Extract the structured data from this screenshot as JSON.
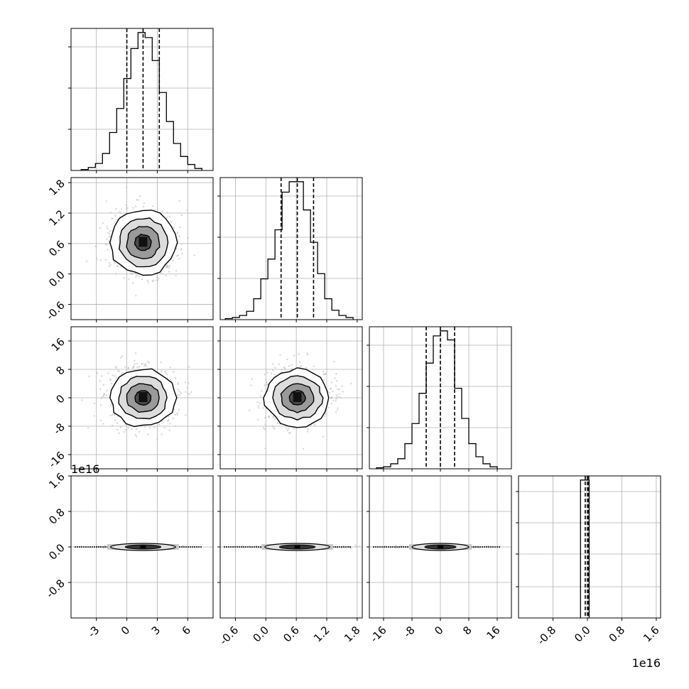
{
  "chart_data": [
    {
      "type": "histogram",
      "panel": "1,1",
      "xlim": [
        -5.5,
        8.5
      ],
      "bin_edges": [
        -4.5,
        -3.8,
        -3.1,
        -2.4,
        -1.7,
        -1.0,
        -0.3,
        0.4,
        1.1,
        1.8,
        2.5,
        3.2,
        3.9,
        4.6,
        5.3,
        6.0,
        6.7,
        7.4
      ],
      "counts": [
        1,
        3,
        7,
        17,
        38,
        62,
        92,
        122,
        138,
        133,
        110,
        78,
        49,
        27,
        14,
        6,
        2
      ],
      "quantiles": [
        0.0,
        1.6,
        3.2
      ],
      "grid": true
    },
    {
      "type": "histogram",
      "panel": "2,2",
      "xlim": [
        -0.9,
        1.9
      ],
      "bin_edges": [
        -0.8,
        -0.66,
        -0.52,
        -0.38,
        -0.24,
        -0.1,
        0.04,
        0.18,
        0.32,
        0.46,
        0.6,
        0.74,
        0.88,
        1.02,
        1.16,
        1.3,
        1.44,
        1.58,
        1.72
      ],
      "counts": [
        1,
        2,
        4,
        8,
        20,
        39,
        58,
        86,
        122,
        132,
        132,
        105,
        74,
        44,
        20,
        9,
        4,
        2
      ],
      "quantiles": [
        0.3,
        0.62,
        0.94
      ],
      "grid": true
    },
    {
      "type": "histogram",
      "panel": "3,3",
      "xlim": [
        -20,
        20
      ],
      "bin_edges": [
        -18,
        -16,
        -14,
        -12,
        -10,
        -8,
        -6,
        -4,
        -2,
        0,
        2,
        4,
        6,
        8,
        10,
        12,
        14,
        16
      ],
      "counts": [
        1,
        2,
        5,
        10,
        25,
        45,
        75,
        105,
        132,
        137,
        128,
        80,
        50,
        25,
        12,
        5,
        2
      ],
      "quantiles": [
        -4,
        0,
        4
      ],
      "grid": true
    },
    {
      "type": "histogram",
      "panel": "4,4",
      "xlim": [
        -1.6e+16,
        1.7e+16
      ],
      "bin_edges": [
        -1600000000000000.0,
        -400000000000000.0,
        400000000000000.0
      ],
      "counts": [
        128,
        128
      ],
      "quantiles": [
        -500000000000000.0,
        0,
        300000000000000.0
      ],
      "offset_label": "1e16",
      "grid": true
    },
    {
      "type": "2d-density",
      "panel": "2,1",
      "xlim": [
        -5.5,
        8.5
      ],
      "ylim": [
        -0.9,
        1.9
      ],
      "center": [
        1.6,
        0.62
      ],
      "spread": [
        1.6,
        0.32
      ],
      "contour_levels": [
        "0.5σ",
        "1σ",
        "1.5σ",
        "2σ"
      ],
      "grid": true
    },
    {
      "type": "2d-density",
      "panel": "3,1",
      "xlim": [
        -5.5,
        8.5
      ],
      "ylim": [
        -20,
        20
      ],
      "center": [
        1.6,
        0
      ],
      "spread": [
        1.6,
        4
      ],
      "contour_levels": [
        "0.5σ",
        "1σ",
        "1.5σ",
        "2σ"
      ],
      "grid": true
    },
    {
      "type": "2d-density",
      "panel": "3,2",
      "xlim": [
        -0.9,
        1.9
      ],
      "ylim": [
        -20,
        20
      ],
      "center": [
        0.62,
        0
      ],
      "spread": [
        0.32,
        4
      ],
      "contour_levels": [
        "0.5σ",
        "1σ",
        "1.5σ",
        "2σ"
      ],
      "grid": true
    },
    {
      "type": "2d-density",
      "panel": "4,1",
      "xlim": [
        -5.5,
        8.5
      ],
      "ylim": [
        -1.6e+16,
        1.6e+16
      ],
      "center": [
        1.6,
        0
      ],
      "spread": [
        1.6,
        300000000000000.0
      ],
      "offset_label": "1e16",
      "grid": true
    },
    {
      "type": "2d-density",
      "panel": "4,2",
      "xlim": [
        -0.9,
        1.9
      ],
      "ylim": [
        -1.6e+16,
        1.6e+16
      ],
      "center": [
        0.62,
        0
      ],
      "spread": [
        0.32,
        300000000000000.0
      ],
      "grid": true
    },
    {
      "type": "2d-density",
      "panel": "4,3",
      "xlim": [
        -20,
        20
      ],
      "ylim": [
        -1.6e+16,
        1.6e+16
      ],
      "center": [
        0,
        0
      ],
      "spread": [
        4,
        300000000000000.0
      ],
      "grid": true
    }
  ],
  "axes": {
    "p1": {
      "xticks": [
        "-3",
        "0",
        "3",
        "6"
      ],
      "xtick_values": [
        -3,
        0,
        3,
        6
      ]
    },
    "p2": {
      "xticks": [
        "-0.6",
        "0.0",
        "0.6",
        "1.2",
        "1.8"
      ],
      "yticks": [
        "-0.6",
        "0.0",
        "0.6",
        "1.2",
        "1.8"
      ],
      "tick_values": [
        -0.6,
        0,
        0.6,
        1.2,
        1.8
      ]
    },
    "p3": {
      "xticks": [
        "-16",
        "-8",
        "0",
        "8",
        "16"
      ],
      "yticks": [
        "-16",
        "-8",
        "0",
        "8",
        "16"
      ],
      "tick_values": [
        -16,
        -8,
        0,
        8,
        16
      ]
    },
    "p4": {
      "xticks": [
        "-0.8",
        "0.0",
        "0.8",
        "1.6"
      ],
      "yticks": [
        "-0.8",
        "0.0",
        "0.8",
        "1.6"
      ],
      "tick_values": [
        -8000000000000000.0,
        0,
        8000000000000000.0,
        1.6e+16
      ],
      "offset": "1e16"
    }
  }
}
